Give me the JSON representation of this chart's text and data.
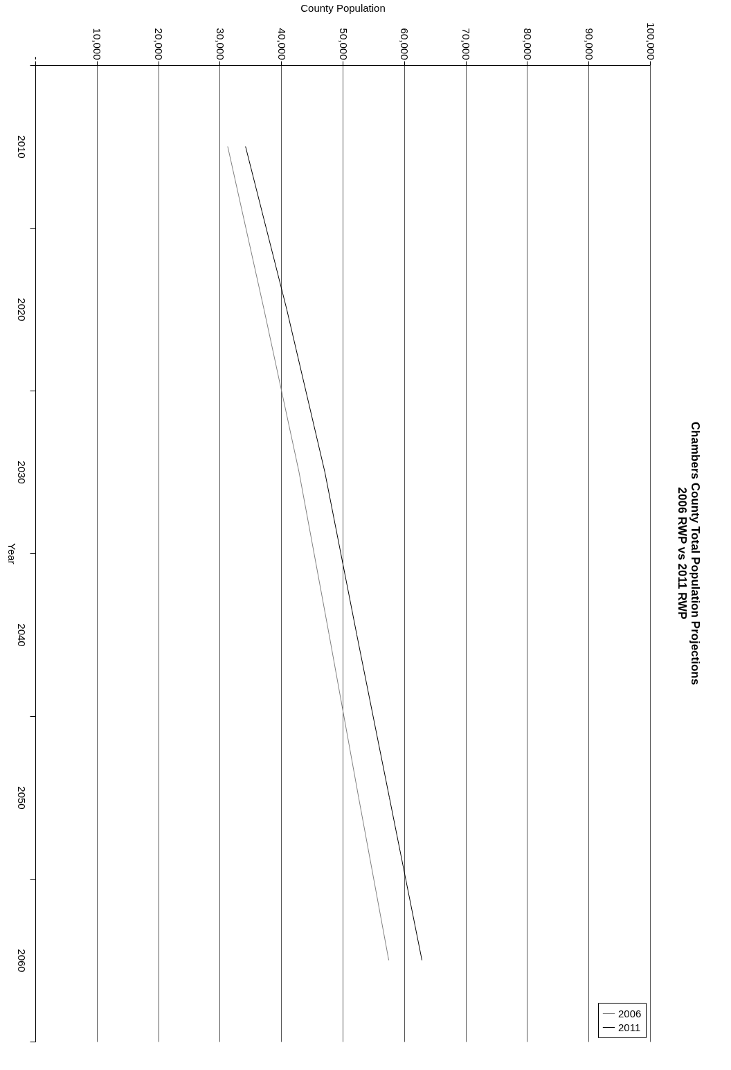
{
  "chart_data": {
    "type": "line",
    "orientation": "horizontal",
    "title": "Chambers County Total Population Projections",
    "subtitle": "2006 RWP vs 2011 RWP",
    "xlabel": "County Population",
    "ylabel": "Year",
    "categories": [
      "2010",
      "2020",
      "2030",
      "2040",
      "2050",
      "2060"
    ],
    "series": [
      {
        "name": "2006",
        "color": "#808080",
        "values": [
          31300,
          37200,
          42900,
          47800,
          52600,
          57500
        ]
      },
      {
        "name": "2011",
        "color": "#000000",
        "values": [
          34200,
          40900,
          47100,
          52300,
          57600,
          62900
        ]
      }
    ],
    "xlim": [
      0,
      100000
    ],
    "xticks": [
      {
        "value": 0,
        "label": "-"
      },
      {
        "value": 10000,
        "label": "10,000"
      },
      {
        "value": 20000,
        "label": "20,000"
      },
      {
        "value": 30000,
        "label": "30,000"
      },
      {
        "value": 40000,
        "label": "40,000"
      },
      {
        "value": 50000,
        "label": "50,000"
      },
      {
        "value": 60000,
        "label": "60,000"
      },
      {
        "value": 70000,
        "label": "70,000"
      },
      {
        "value": 80000,
        "label": "80,000"
      },
      {
        "value": 90000,
        "label": "90,000"
      },
      {
        "value": 100000,
        "label": "100,000"
      }
    ],
    "grid": "x",
    "legend": "bottom right"
  }
}
